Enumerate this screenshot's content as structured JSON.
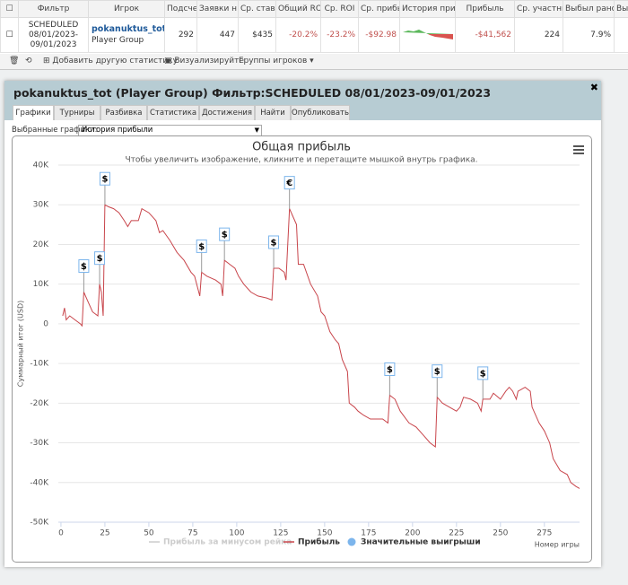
{
  "table": {
    "headers": [
      "Фильтр",
      "Игрок",
      "Подсчет",
      "Заявки н",
      "Ср. ставк",
      "Общий ROI",
      "Ср. ROI",
      "Ср. прибы",
      "История прибы",
      "Прибыль",
      "Ср. участни",
      "Выбыл рано",
      "Выб"
    ],
    "row": {
      "filter": "SCHEDULED 08/01/2023-09/01/2023",
      "player": "pokanuktus_tot",
      "player_type": "Player Group",
      "count": 292,
      "entries": 447,
      "avg_stake": "$435",
      "total_roi": "-20.2%",
      "avg_roi": "-23.2%",
      "avg_profit": "-$92.98",
      "profit": "-$41,562",
      "avg_field": 224,
      "early_out": "7.9%"
    }
  },
  "toolbar": {
    "add_stat": "Добавить другую статистику",
    "visualize": "Визуализируйте",
    "groups": "Группы игроков"
  },
  "panel": {
    "title": "pokanuktus_tot (Player Group) Фильтр:SCHEDULED 08/01/2023-09/01/2023",
    "tabs": [
      "Графики",
      "Турниры",
      "Разбивка",
      "Статистика",
      "Достижения",
      "Найти",
      "Опубликовать"
    ],
    "selected_label": "Выбранные графики:",
    "selected_value": "История прибыли"
  },
  "chart_data": {
    "type": "line",
    "title": "Общая прибыль",
    "subtitle": "Чтобы увеличить изображение, кликните и перетащите мышкой внутрь графика.",
    "y_label": "Суммарный итог (USD)",
    "x_label": "Номер игры",
    "xlim": [
      -1.5,
      295
    ],
    "xticks": [
      0,
      25,
      50,
      75,
      100,
      125,
      150,
      175,
      200,
      225,
      250,
      275
    ],
    "ylim": [
      -50000,
      40000
    ],
    "yticks": [
      {
        "value": -50000,
        "label": "-50K"
      },
      {
        "value": -40000,
        "label": "-40K"
      },
      {
        "value": -30000,
        "label": "-30K"
      },
      {
        "value": -20000,
        "label": "-20K"
      },
      {
        "value": -10000,
        "label": "-10K"
      },
      0,
      {
        "value": 10000,
        "label": "10K"
      },
      {
        "value": 20000,
        "label": "20K"
      },
      {
        "value": 30000,
        "label": "30K"
      },
      {
        "value": 40000,
        "label": "40K"
      }
    ],
    "grid": true,
    "series": [
      {
        "name": "Прибыль за минусом рейка",
        "color": "#cccccc",
        "visible": false
      },
      {
        "name": "Прибыль",
        "color": "#c8454b",
        "x": [
          1,
          2,
          3,
          5,
          8,
          11,
          12,
          13,
          15,
          18,
          21,
          22,
          23,
          24,
          25,
          27,
          30,
          33,
          36,
          38,
          40,
          44,
          46,
          50,
          54,
          56,
          58,
          62,
          66,
          70,
          74,
          76,
          79,
          80,
          83,
          88,
          91,
          92,
          93,
          96,
          99,
          101,
          104,
          108,
          112,
          117,
          120,
          121,
          124,
          127,
          128,
          130,
          132,
          134,
          135,
          138,
          142,
          146,
          148,
          150,
          153,
          156,
          158,
          160,
          163,
          164,
          167,
          169,
          172,
          176,
          179,
          183,
          186,
          187,
          190,
          193,
          198,
          202,
          206,
          210,
          213,
          214,
          217,
          221,
          225,
          227,
          229,
          233,
          237,
          239,
          240,
          244,
          246,
          250,
          253,
          255,
          257,
          259,
          260,
          264,
          267,
          268,
          272,
          275,
          278,
          280,
          284,
          288,
          290,
          293,
          295
        ],
        "values": [
          2000,
          4000,
          1000,
          2000,
          1000,
          0,
          -500,
          8000,
          6000,
          3000,
          2000,
          10000,
          8000,
          2000,
          30000,
          29500,
          29000,
          28000,
          26000,
          24500,
          26000,
          26000,
          29000,
          28000,
          26000,
          23000,
          23500,
          21000,
          18000,
          16000,
          13000,
          12000,
          7000,
          13000,
          12000,
          11000,
          10000,
          7000,
          16000,
          15000,
          14000,
          12000,
          10000,
          8000,
          7000,
          6500,
          6000,
          14000,
          14000,
          13000,
          11000,
          29000,
          27000,
          25000,
          15000,
          15000,
          10000,
          7000,
          3000,
          2000,
          -2000,
          -4000,
          -5000,
          -9000,
          -12000,
          -20000,
          -21000,
          -22000,
          -23000,
          -24000,
          -24000,
          -24000,
          -25000,
          -18000,
          -19000,
          -22000,
          -25000,
          -26000,
          -28000,
          -30000,
          -31000,
          -18500,
          -20000,
          -21000,
          -22000,
          -21000,
          -18500,
          -19000,
          -20000,
          -22000,
          -19000,
          -19000,
          -17500,
          -19000,
          -17000,
          -16000,
          -17000,
          -19000,
          -17000,
          -16000,
          -17000,
          -21000,
          -25000,
          -27000,
          -30000,
          -34000,
          -37000,
          -38000,
          -40000,
          -41000,
          -41500
        ]
      },
      {
        "name": "Значительные выигрыши",
        "color": "#7cb5ec",
        "x": [
          13,
          22,
          25,
          80,
          93,
          121,
          130,
          187,
          214,
          240
        ],
        "values": [
          8000,
          10000,
          30000,
          13000,
          16000,
          14000,
          29000,
          -18000,
          -18500,
          -19000
        ],
        "flag_labels": [
          "$",
          "$",
          "$",
          "$",
          "$",
          "$",
          "€",
          "$",
          "$",
          "$"
        ]
      }
    ]
  }
}
